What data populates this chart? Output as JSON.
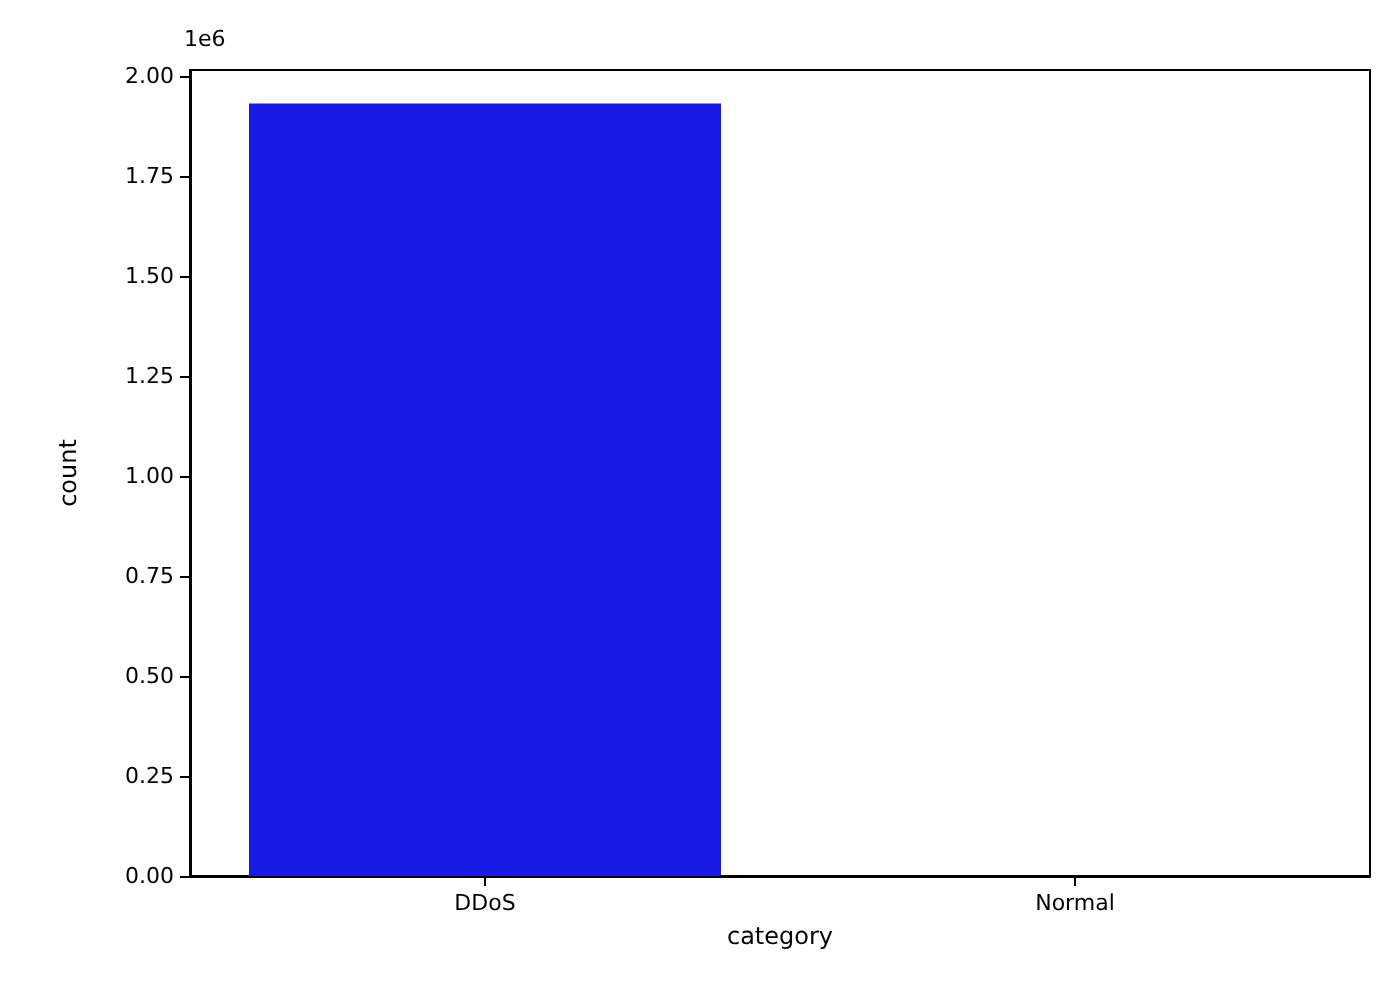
{
  "chart_data": {
    "type": "bar",
    "xlabel": "category",
    "ylabel": "count",
    "categories": [
      "DDoS",
      "Normal"
    ],
    "values": [
      1.93,
      0
    ],
    "color": "#1a1ae6",
    "ylim": [
      0,
      2.014
    ],
    "yticks": [
      {
        "value": 0,
        "label": "0.00"
      },
      {
        "value": 0.25,
        "label": "0.25"
      },
      {
        "value": 0.5,
        "label": "0.50"
      },
      {
        "value": 0.75,
        "label": "0.75"
      },
      {
        "value": 1,
        "label": "1.00"
      },
      {
        "value": 1.25,
        "label": "1.25"
      },
      {
        "value": 1.5,
        "label": "1.50"
      },
      {
        "value": 1.75,
        "label": "1.75"
      },
      {
        "value": 2,
        "label": "2.00"
      }
    ],
    "annotations": [
      "1e6"
    ],
    "grid": false
  }
}
